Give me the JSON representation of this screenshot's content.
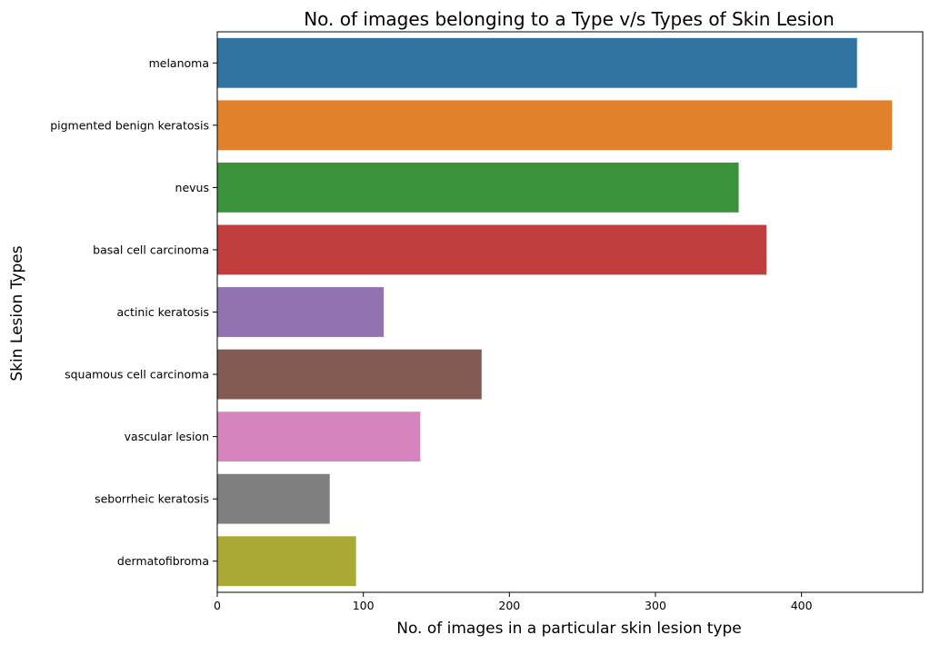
{
  "chart_data": {
    "type": "bar",
    "orientation": "horizontal",
    "title": "No. of images belonging to a Type v/s Types of Skin Lesion",
    "xlabel": "No. of images in a particular skin lesion type",
    "ylabel": "Skin Lesion Types",
    "xlim": [
      0,
      483
    ],
    "xticks": [
      0,
      100,
      200,
      300,
      400
    ],
    "grid": false,
    "categories": [
      "melanoma",
      "pigmented benign keratosis",
      "nevus",
      "basal cell carcinoma",
      "actinic keratosis",
      "squamous cell carcinoma",
      "vascular lesion",
      "seborrheic keratosis",
      "dermatofibroma"
    ],
    "values": [
      438,
      462,
      357,
      376,
      114,
      181,
      139,
      77,
      95
    ],
    "colors": [
      "#3274a1",
      "#e1812c",
      "#3a923a",
      "#c03d3e",
      "#9372b2",
      "#845b53",
      "#d684bd",
      "#7f7f7f",
      "#a9aa35"
    ]
  }
}
